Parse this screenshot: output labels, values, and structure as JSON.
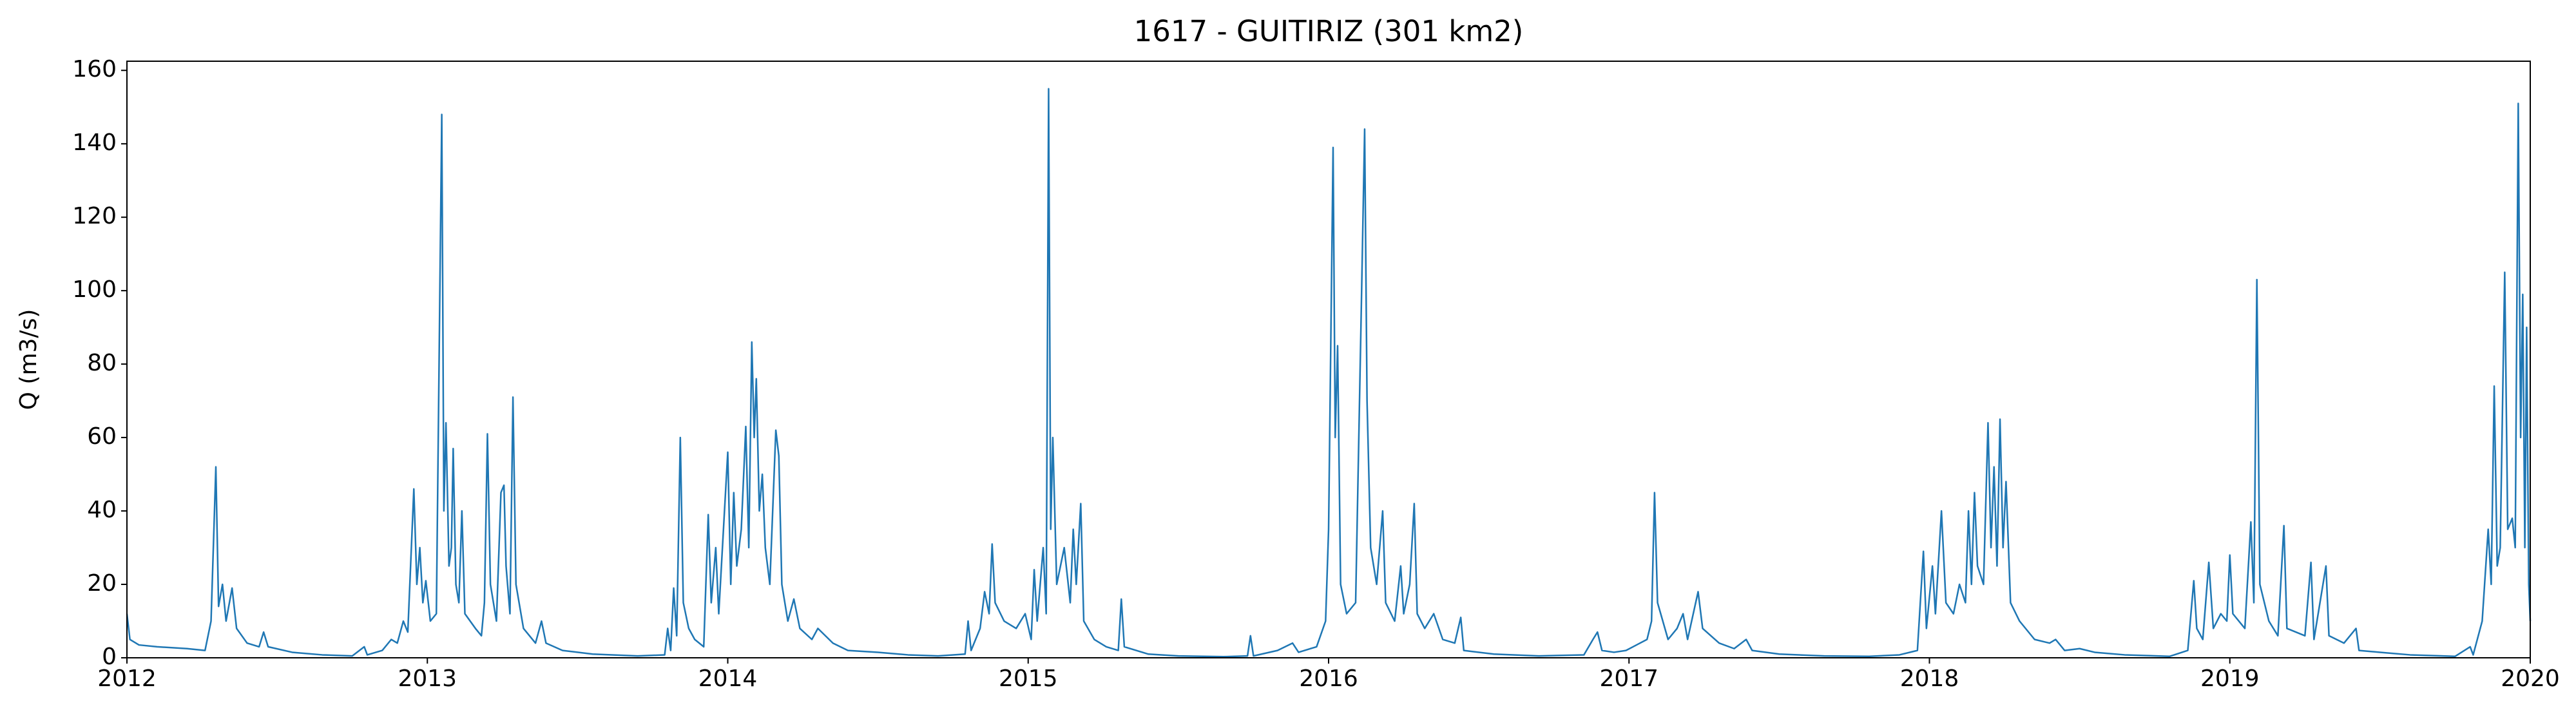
{
  "chart_data": {
    "type": "line",
    "title": "1617 - GUITIRIZ (301 km2)",
    "y_label": "Q (m3/s)",
    "color": "#1f77b4",
    "xlim": [
      2012,
      2020
    ],
    "xticks": [
      2012,
      2013,
      2014,
      2015,
      2016,
      2017,
      2018,
      2019,
      2020
    ],
    "ylim": [
      0,
      162.5
    ],
    "yticks": [
      0,
      20,
      40,
      60,
      80,
      100,
      120,
      140,
      160
    ],
    "grid": false,
    "x": [
      2012.0,
      2012.01,
      2012.04,
      2012.1,
      2012.2,
      2012.26,
      2012.28,
      2012.296,
      2012.305,
      2012.318,
      2012.33,
      2012.35,
      2012.365,
      2012.4,
      2012.44,
      2012.455,
      2012.47,
      2012.55,
      2012.65,
      2012.75,
      2012.79,
      2012.8,
      2012.85,
      2012.88,
      2012.9,
      2012.92,
      2012.935,
      2012.955,
      2012.965,
      2012.975,
      2012.985,
      2012.995,
      2013.01,
      2013.03,
      2013.048,
      2013.055,
      2013.062,
      2013.072,
      2013.08,
      2013.086,
      2013.095,
      2013.105,
      2013.115,
      2013.125,
      2013.16,
      2013.18,
      2013.19,
      2013.2,
      2013.21,
      2013.23,
      2013.245,
      2013.255,
      2013.262,
      2013.275,
      2013.285,
      2013.295,
      2013.32,
      2013.36,
      2013.38,
      2013.395,
      2013.45,
      2013.55,
      2013.7,
      2013.79,
      2013.8,
      2013.81,
      2013.82,
      2013.83,
      2013.842,
      2013.852,
      2013.87,
      2013.89,
      2013.92,
      2013.935,
      2013.945,
      2013.96,
      2013.97,
      2014.0,
      2014.01,
      2014.02,
      2014.03,
      2014.045,
      2014.06,
      2014.07,
      2014.08,
      2014.088,
      2014.095,
      2014.105,
      2014.115,
      2014.125,
      2014.14,
      2014.16,
      2014.17,
      2014.18,
      2014.2,
      2014.22,
      2014.24,
      2014.28,
      2014.3,
      2014.35,
      2014.4,
      2014.5,
      2014.6,
      2014.7,
      2014.79,
      2014.8,
      2014.81,
      2014.84,
      2014.855,
      2014.87,
      2014.88,
      2014.89,
      2014.92,
      2014.96,
      2014.99,
      2015.01,
      2015.02,
      2015.03,
      2015.05,
      2015.06,
      2015.068,
      2015.075,
      2015.082,
      2015.095,
      2015.12,
      2015.14,
      2015.15,
      2015.16,
      2015.175,
      2015.185,
      2015.22,
      2015.26,
      2015.3,
      2015.31,
      2015.32,
      2015.4,
      2015.5,
      2015.65,
      2015.73,
      2015.74,
      2015.75,
      2015.83,
      2015.88,
      2015.9,
      2015.96,
      2015.99,
      2016.0,
      2016.015,
      2016.022,
      2016.03,
      2016.04,
      2016.06,
      2016.09,
      2016.11,
      2016.12,
      2016.128,
      2016.14,
      2016.16,
      2016.18,
      2016.19,
      2016.22,
      2016.24,
      2016.25,
      2016.27,
      2016.285,
      2016.295,
      2016.32,
      2016.35,
      2016.38,
      2016.42,
      2016.44,
      2016.45,
      2016.55,
      2016.7,
      2016.85,
      2016.88,
      2016.895,
      2016.91,
      2016.95,
      2016.99,
      2017.06,
      2017.075,
      2017.085,
      2017.095,
      2017.13,
      2017.16,
      2017.18,
      2017.195,
      2017.23,
      2017.245,
      2017.3,
      2017.35,
      2017.39,
      2017.41,
      2017.5,
      2017.65,
      2017.8,
      2017.9,
      2017.96,
      2017.98,
      2017.99,
      2018.01,
      2018.02,
      2018.04,
      2018.055,
      2018.08,
      2018.1,
      2018.12,
      2018.13,
      2018.14,
      2018.15,
      2018.16,
      2018.18,
      2018.195,
      2018.205,
      2018.215,
      2018.225,
      2018.235,
      2018.245,
      2018.255,
      2018.27,
      2018.3,
      2018.35,
      2018.4,
      2018.42,
      2018.45,
      2018.5,
      2018.55,
      2018.65,
      2018.8,
      2018.86,
      2018.88,
      2018.89,
      2018.91,
      2018.93,
      2018.945,
      2018.97,
      2018.99,
      2019.0,
      2019.01,
      2019.05,
      2019.07,
      2019.08,
      2019.09,
      2019.1,
      2019.13,
      2019.16,
      2019.18,
      2019.19,
      2019.25,
      2019.27,
      2019.28,
      2019.32,
      2019.33,
      2019.38,
      2019.42,
      2019.43,
      2019.5,
      2019.6,
      2019.75,
      2019.8,
      2019.81,
      2019.84,
      2019.86,
      2019.87,
      2019.88,
      2019.89,
      2019.9,
      2019.915,
      2019.925,
      2019.94,
      2019.95,
      2019.96,
      2019.968,
      2019.975,
      2019.982,
      2019.988,
      2019.995,
      2020.0
    ],
    "values": [
      12,
      5,
      3.5,
      3,
      2.5,
      2,
      10,
      52,
      14,
      20,
      10,
      19,
      8,
      4,
      3,
      7,
      3,
      1.5,
      0.8,
      0.5,
      3,
      0.8,
      2,
      5,
      4,
      10,
      7,
      46,
      20,
      30,
      15,
      21,
      10,
      12,
      148,
      40,
      64,
      25,
      30,
      57,
      20,
      15,
      40,
      12,
      8,
      6,
      15,
      61,
      20,
      10,
      45,
      47,
      25,
      12,
      71,
      20,
      8,
      4,
      10,
      4,
      2,
      1,
      0.5,
      0.8,
      8,
      2,
      19,
      6,
      60,
      15,
      8,
      5,
      3,
      39,
      15,
      30,
      12,
      56,
      20,
      45,
      25,
      35,
      63,
      30,
      86,
      60,
      76,
      40,
      50,
      30,
      20,
      62,
      55,
      20,
      10,
      16,
      8,
      5,
      8,
      4,
      2,
      1.5,
      0.8,
      0.5,
      1,
      10,
      2,
      8,
      18,
      12,
      31,
      15,
      10,
      8,
      12,
      5,
      24,
      10,
      30,
      12,
      155,
      35,
      60,
      20,
      30,
      15,
      35,
      20,
      42,
      10,
      5,
      3,
      2,
      16,
      3,
      1,
      0.5,
      0.3,
      0.5,
      6,
      0.5,
      2,
      4,
      1.5,
      3,
      10,
      35,
      139,
      60,
      85,
      20,
      12,
      15,
      100,
      144,
      70,
      30,
      20,
      40,
      15,
      10,
      25,
      12,
      20,
      42,
      12,
      8,
      12,
      5,
      4,
      11,
      2,
      1,
      0.5,
      0.8,
      5,
      7,
      2,
      1.5,
      2,
      5,
      10,
      45,
      15,
      5,
      8,
      12,
      5,
      18,
      8,
      4,
      2.5,
      5,
      2,
      1,
      0.5,
      0.4,
      0.8,
      2,
      29,
      8,
      25,
      12,
      40,
      15,
      12,
      20,
      15,
      40,
      20,
      45,
      25,
      20,
      64,
      30,
      52,
      25,
      65,
      30,
      48,
      15,
      10,
      5,
      4,
      5,
      2,
      2.5,
      1.5,
      0.8,
      0.4,
      2,
      21,
      8,
      5,
      26,
      8,
      12,
      10,
      28,
      12,
      8,
      37,
      15,
      103,
      20,
      10,
      6,
      36,
      8,
      6,
      26,
      5,
      25,
      6,
      4,
      8,
      2,
      1.5,
      0.8,
      0.4,
      3,
      0.8,
      10,
      35,
      20,
      74,
      25,
      30,
      105,
      35,
      38,
      30,
      151,
      60,
      99,
      30,
      90,
      20,
      10
    ]
  }
}
